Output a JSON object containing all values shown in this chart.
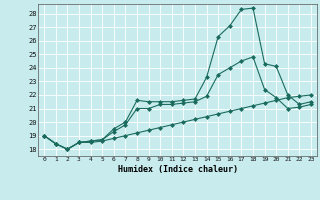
{
  "xlabel": "Humidex (Indice chaleur)",
  "bg_color": "#c8ecee",
  "grid_color": "#ffffff",
  "line_color": "#1a6b5e",
  "xlim": [
    -0.5,
    23.5
  ],
  "ylim": [
    17.5,
    28.7
  ],
  "xticks": [
    0,
    1,
    2,
    3,
    4,
    5,
    6,
    7,
    8,
    9,
    10,
    11,
    12,
    13,
    14,
    15,
    16,
    17,
    18,
    19,
    20,
    21,
    22,
    23
  ],
  "yticks": [
    18,
    19,
    20,
    21,
    22,
    23,
    24,
    25,
    26,
    27,
    28
  ],
  "series": [
    [
      19.0,
      18.4,
      18.0,
      18.5,
      18.6,
      18.7,
      19.5,
      20.0,
      21.6,
      21.5,
      21.5,
      21.5,
      21.6,
      21.7,
      23.3,
      26.3,
      27.1,
      28.3,
      28.4,
      24.3,
      24.1,
      22.0,
      21.3,
      21.5
    ],
    [
      19.0,
      18.4,
      18.0,
      18.5,
      18.6,
      18.7,
      19.3,
      19.8,
      21.0,
      21.0,
      21.3,
      21.3,
      21.4,
      21.5,
      21.9,
      23.5,
      24.0,
      24.5,
      24.8,
      22.4,
      21.8,
      21.0,
      21.1,
      21.3
    ],
    [
      19.0,
      18.4,
      18.0,
      18.5,
      18.5,
      18.6,
      18.8,
      19.0,
      19.2,
      19.4,
      19.6,
      19.8,
      20.0,
      20.2,
      20.4,
      20.6,
      20.8,
      21.0,
      21.2,
      21.4,
      21.6,
      21.8,
      21.9,
      22.0
    ]
  ]
}
